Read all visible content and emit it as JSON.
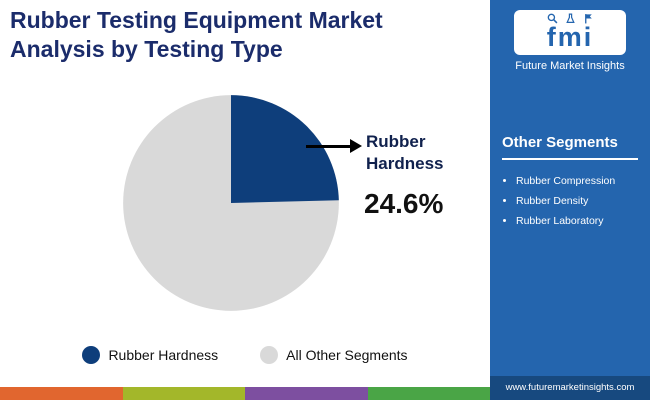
{
  "header": {
    "title": "Rubber Testing Equipment Market Analysis by Testing Type"
  },
  "brand": {
    "logo_text": "fmi",
    "name": "Future Market Insights",
    "website": "www.futuremarketinsights.com",
    "logo_icons": [
      "magnifier-icon",
      "flask-icon",
      "flag-icon"
    ]
  },
  "sidebar": {
    "heading": "Other Segments",
    "items": [
      "Rubber Compression",
      "Rubber Density",
      "Rubber Laboratory"
    ]
  },
  "chart_data": {
    "type": "pie",
    "title": "Rubber Testing Equipment Market Analysis by Testing Type",
    "slices": [
      {
        "label": "Rubber Hardness",
        "value": 24.6,
        "color": "#0e3e7b"
      },
      {
        "label": "All Other Segments",
        "value": 75.4,
        "color": "#d9d9d9"
      }
    ],
    "annotation": {
      "label": "Rubber Hardness",
      "value_text": "24.6%"
    },
    "legend_position": "bottom"
  },
  "colors": {
    "sidebar_blue": "#2465ae",
    "title_navy": "#1b2c6b",
    "footer_blue": "#17497f",
    "stripe": [
      "#e1662f",
      "#a3b72a",
      "#7d4fa0",
      "#4aa546"
    ]
  }
}
